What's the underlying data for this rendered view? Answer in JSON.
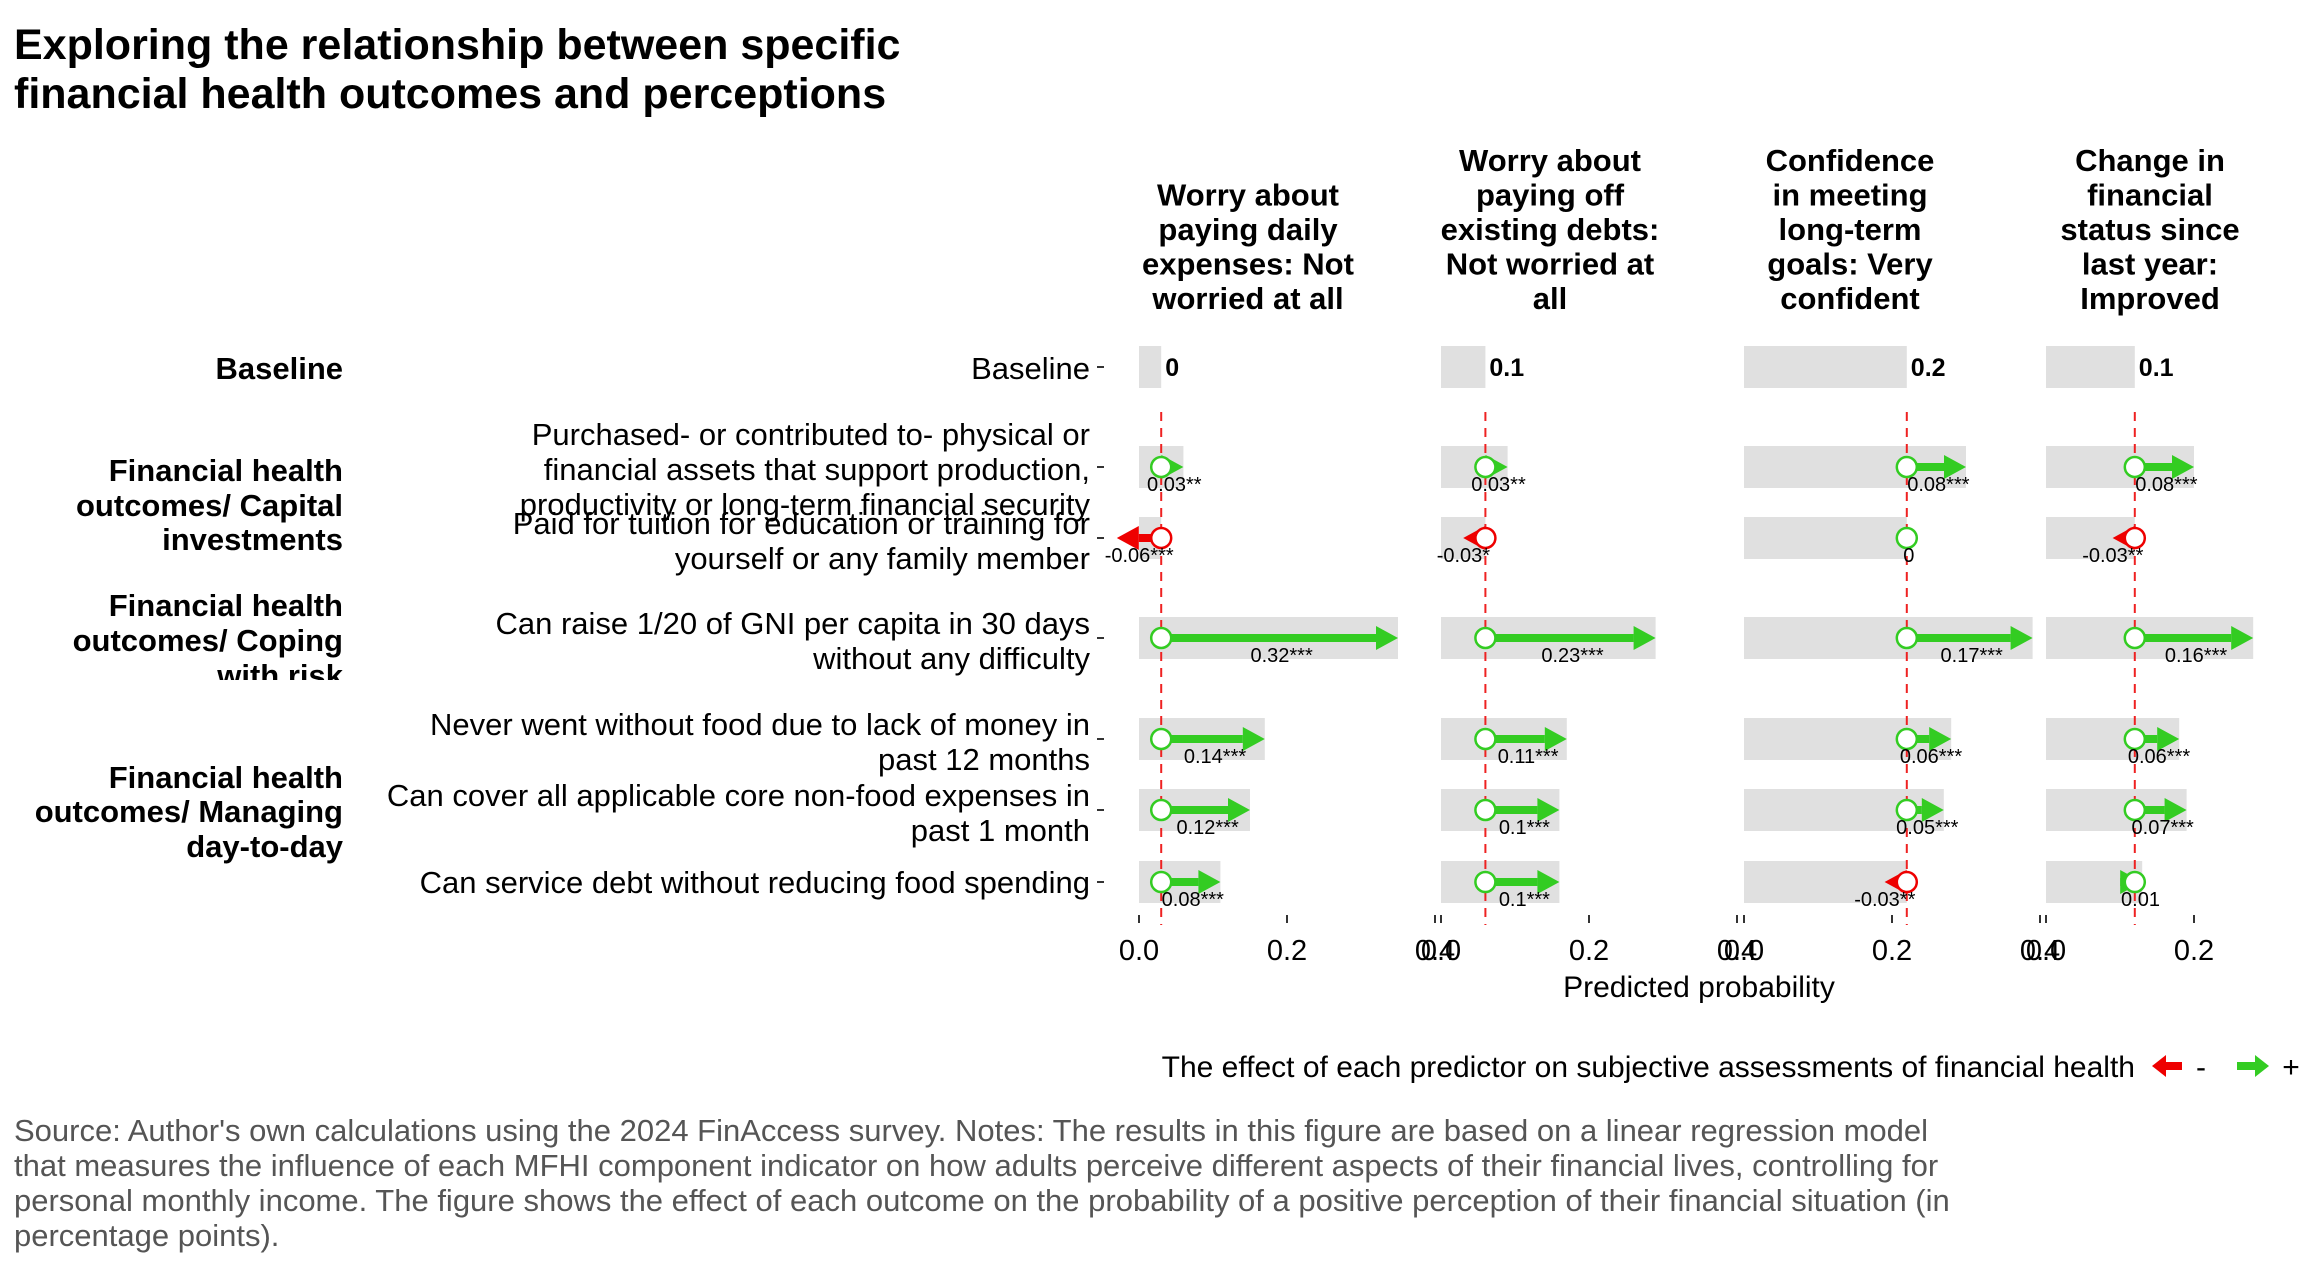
{
  "title": [
    "Exploring the relationship between specific",
    "financial health outcomes and perceptions"
  ],
  "chart_data": {
    "type": "bar",
    "xlabel": "Predicted probability",
    "xlim": [
      0,
      0.4
    ],
    "x_ticks": [
      "0.0",
      "0.2",
      "0.4"
    ],
    "panels": [
      {
        "title": [
          "Worry about",
          "paying daily",
          "expenses: Not",
          "worried at all"
        ],
        "baseline": 0.03,
        "baseline_label": "0"
      },
      {
        "title": [
          "Worry about",
          "paying off",
          "existing debts:",
          "Not worried at",
          "all"
        ],
        "baseline": 0.06,
        "baseline_label": "0.1"
      },
      {
        "title": [
          "Confidence",
          "in meeting",
          "long-term",
          "goals: Very",
          "confident"
        ],
        "baseline": 0.22,
        "baseline_label": "0.2"
      },
      {
        "title": [
          "Change in",
          "financial",
          "status since",
          "last year:",
          "Improved"
        ],
        "baseline": 0.12,
        "baseline_label": "0.1"
      }
    ],
    "groups": [
      {
        "label": [
          "Baseline"
        ]
      },
      {
        "label": [
          "Financial health",
          "outcomes/ Capital",
          "investments"
        ]
      },
      {
        "label": [
          "Financial health",
          "outcomes/ Coping",
          "with risk"
        ]
      },
      {
        "label": [
          "Financial health",
          "outcomes/ Managing",
          "day-to-day"
        ]
      }
    ],
    "rows": [
      {
        "label": [
          "Baseline"
        ],
        "baseline_row": true
      },
      {
        "label": [
          "Purchased- or contributed to- physical or",
          "financial assets that support production,",
          "productivity or long-term financial security"
        ],
        "effects": [
          0.03,
          0.03,
          0.08,
          0.08
        ],
        "effect_labels": [
          "0.03**",
          "0.03**",
          "0.08***",
          "0.08***"
        ]
      },
      {
        "label": [
          "Paid for tuition for education or training for",
          "yourself or any family member"
        ],
        "effects": [
          -0.06,
          -0.03,
          0,
          -0.03
        ],
        "effect_labels": [
          "-0.06***",
          "-0.03*",
          "0",
          "-0.03**"
        ]
      },
      {
        "label": [
          "Can raise 1/20 of GNI per capita in 30 days",
          "without any difficulty"
        ],
        "effects": [
          0.32,
          0.23,
          0.17,
          0.16
        ],
        "effect_labels": [
          "0.32***",
          "0.23***",
          "0.17***",
          "0.16***"
        ]
      },
      {
        "label": [
          "Never went without food due to lack of money in",
          "past 12 months"
        ],
        "effects": [
          0.14,
          0.11,
          0.06,
          0.06
        ],
        "effect_labels": [
          "0.14***",
          "0.11***",
          "0.06***",
          "0.06***"
        ]
      },
      {
        "label": [
          "Can cover all applicable core non-food expenses in",
          "past 1 month"
        ],
        "effects": [
          0.12,
          0.1,
          0.05,
          0.07
        ],
        "effect_labels": [
          "0.12***",
          "0.1***",
          "0.05***",
          "0.07***"
        ]
      },
      {
        "label": [
          "Can service debt without reducing food spending"
        ],
        "effects": [
          0.08,
          0.1,
          -0.03,
          0.01
        ],
        "effect_labels": [
          "0.08***",
          "0.1***",
          "-0.03**",
          "0.01"
        ]
      }
    ],
    "legend": {
      "title": "The effect of each predictor on subjective assessments of financial health",
      "negative": "-",
      "positive": "+"
    },
    "grid": false,
    "colors": {
      "positive": "#33cc22",
      "negative": "#ee0000",
      "bar": "#e0e0e0",
      "baseline_line": "#ee2222"
    }
  },
  "source": [
    "Source: Author's own calculations using the 2024 FinAccess survey. Notes: The results in this figure are based on a linear regression model",
    "that measures the influence of each MFHI component indicator on how adults perceive different aspects of their financial lives, controlling for",
    "personal monthly income. The figure shows the effect of each outcome on the probability of a positive perception of their financial situation (in",
    "percentage points)."
  ]
}
